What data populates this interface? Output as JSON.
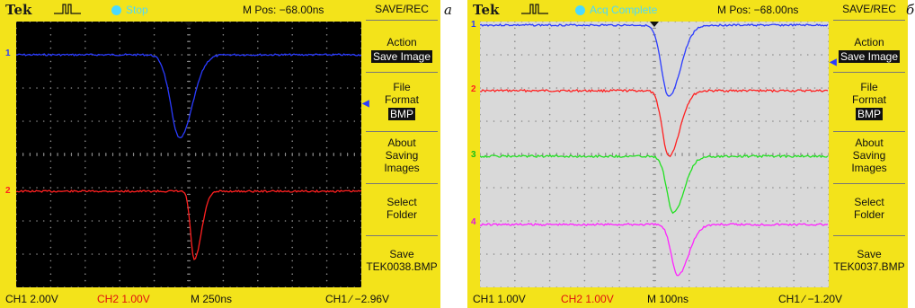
{
  "panel_a": {
    "letter": "a",
    "brand": "Tek",
    "status": "Stop",
    "mpos": "M Pos: −68.00ns",
    "menu_title": "SAVE/REC",
    "menu": {
      "action_label": "Action",
      "action_value": "Save Image",
      "file_format_l1": "File",
      "file_format_l2": "Format",
      "file_format_value": "BMP",
      "about_l1": "About",
      "about_l2": "Saving",
      "about_l3": "Images",
      "select_l1": "Select",
      "select_l2": "Folder",
      "save_l1": "Save",
      "save_l2": "TEK0038.BMP"
    },
    "bottom": {
      "ch1": "CH1  2.00V",
      "ch2": "CH2  1.00V",
      "timebase": "M 250ns",
      "trigger": "CH1 ∕ −2.96V"
    },
    "channel_markers": [
      "1",
      "2"
    ]
  },
  "panel_b": {
    "letter": "б",
    "brand": "Tek",
    "status": "Acq Complete",
    "mpos": "M Pos: −68.00ns",
    "menu_title": "SAVE/REC",
    "menu": {
      "action_label": "Action",
      "action_value": "Save Image",
      "file_format_l1": "File",
      "file_format_l2": "Format",
      "file_format_value": "BMP",
      "about_l1": "About",
      "about_l2": "Saving",
      "about_l3": "Images",
      "select_l1": "Select",
      "select_l2": "Folder",
      "save_l1": "Save",
      "save_l2": "TEK0037.BMP"
    },
    "bottom": {
      "ch1": "CH1  1.00V",
      "ch2": "CH2  1.00V",
      "timebase": "M 100ns",
      "trigger": "CH1 ∕ −1.20V"
    },
    "channel_markers": [
      "1",
      "2",
      "3",
      "4"
    ]
  },
  "colors": {
    "ch1": "#2a3bff",
    "ch2": "#ff2020",
    "ch3": "#22e022",
    "ch4": "#ff22ff",
    "bezel": "#f3e31a",
    "status": "#4bd9ff"
  }
}
